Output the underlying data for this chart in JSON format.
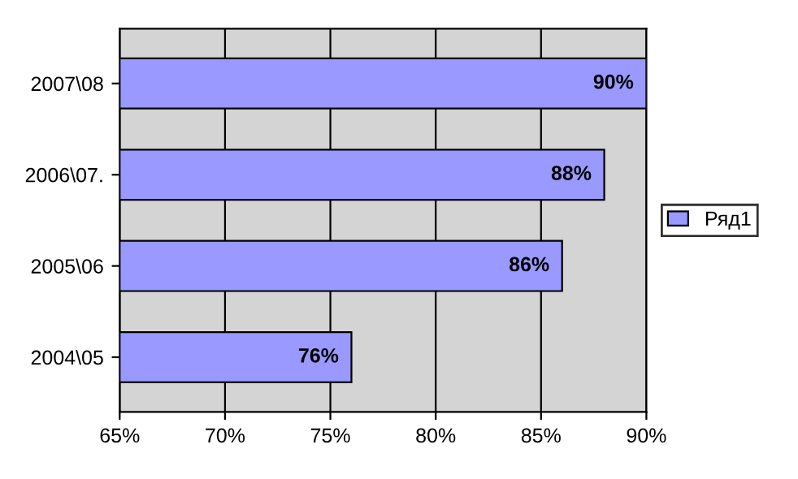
{
  "chart_data": {
    "type": "bar",
    "orientation": "horizontal",
    "categories": [
      "2007\\08",
      "2006\\07.",
      "2005\\06",
      "2004\\05"
    ],
    "series": [
      {
        "name": "Ряд1",
        "color": "#9999ff",
        "values": [
          90,
          88,
          86,
          76
        ],
        "value_labels": [
          "90%",
          "88%",
          "86%",
          "76%"
        ]
      }
    ],
    "xlim": [
      65,
      90
    ],
    "xticks": [
      {
        "value": 65,
        "label": "65%"
      },
      {
        "value": 70,
        "label": "70%"
      },
      {
        "value": 75,
        "label": "75%"
      },
      {
        "value": 80,
        "label": "80%"
      },
      {
        "value": 85,
        "label": "85%"
      },
      {
        "value": 90,
        "label": "90%"
      }
    ],
    "grid": "x",
    "legend": "right"
  }
}
